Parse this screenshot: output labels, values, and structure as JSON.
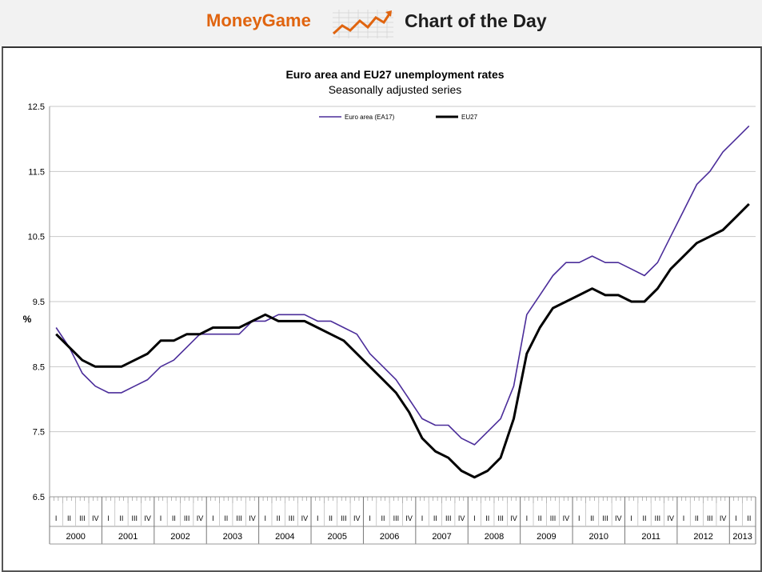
{
  "banner": {
    "brand": "MoneyGame",
    "title": "Chart of the Day"
  },
  "chart_data": {
    "type": "line",
    "title": "Euro area and EU27 unemployment rates",
    "subtitle": "Seasonally adjusted series",
    "ylabel": "%",
    "ylim": [
      6.5,
      12.5
    ],
    "yticks": [
      6.5,
      7.5,
      8.5,
      9.5,
      10.5,
      11.5,
      12.5
    ],
    "grid": true,
    "legend_position": "top-center",
    "x_start": "2000-01",
    "x_end": "2013-04",
    "years": [
      "2000",
      "2001",
      "2002",
      "2003",
      "2004",
      "2005",
      "2006",
      "2007",
      "2008",
      "2009",
      "2010",
      "2011",
      "2012",
      "2013"
    ],
    "quarter_labels": [
      "I",
      "II",
      "III",
      "IV"
    ],
    "x_quarters": [
      "2000-Q1",
      "2000-Q2",
      "2000-Q3",
      "2000-Q4",
      "2001-Q1",
      "2001-Q2",
      "2001-Q3",
      "2001-Q4",
      "2002-Q1",
      "2002-Q2",
      "2002-Q3",
      "2002-Q4",
      "2003-Q1",
      "2003-Q2",
      "2003-Q3",
      "2003-Q4",
      "2004-Q1",
      "2004-Q2",
      "2004-Q3",
      "2004-Q4",
      "2005-Q1",
      "2005-Q2",
      "2005-Q3",
      "2005-Q4",
      "2006-Q1",
      "2006-Q2",
      "2006-Q3",
      "2006-Q4",
      "2007-Q1",
      "2007-Q2",
      "2007-Q3",
      "2007-Q4",
      "2008-Q1",
      "2008-Q2",
      "2008-Q3",
      "2008-Q4",
      "2009-Q1",
      "2009-Q2",
      "2009-Q3",
      "2009-Q4",
      "2010-Q1",
      "2010-Q2",
      "2010-Q3",
      "2010-Q4",
      "2011-Q1",
      "2011-Q2",
      "2011-Q3",
      "2011-Q4",
      "2012-Q1",
      "2012-Q2",
      "2012-Q3",
      "2012-Q4",
      "2013-Q1",
      "2013-Q2"
    ],
    "series": [
      {
        "name": "Euro area (EA17)",
        "color": "#4b2d9a",
        "values": [
          9.1,
          8.8,
          8.4,
          8.2,
          8.1,
          8.1,
          8.2,
          8.3,
          8.5,
          8.6,
          8.8,
          9.0,
          9.0,
          9.0,
          9.0,
          9.2,
          9.2,
          9.3,
          9.3,
          9.3,
          9.2,
          9.2,
          9.1,
          9.0,
          8.7,
          8.5,
          8.3,
          8.0,
          7.7,
          7.6,
          7.6,
          7.4,
          7.3,
          7.5,
          7.7,
          8.2,
          9.3,
          9.6,
          9.9,
          10.1,
          10.1,
          10.2,
          10.1,
          10.1,
          10.0,
          9.9,
          10.1,
          10.5,
          10.9,
          11.3,
          11.5,
          11.8,
          12.0,
          12.2
        ]
      },
      {
        "name": "EU27",
        "color": "#000000",
        "values": [
          9.0,
          8.8,
          8.6,
          8.5,
          8.5,
          8.5,
          8.6,
          8.7,
          8.9,
          8.9,
          9.0,
          9.0,
          9.1,
          9.1,
          9.1,
          9.2,
          9.3,
          9.2,
          9.2,
          9.2,
          9.1,
          9.0,
          8.9,
          8.7,
          8.5,
          8.3,
          8.1,
          7.8,
          7.4,
          7.2,
          7.1,
          6.9,
          6.8,
          6.9,
          7.1,
          7.7,
          8.7,
          9.1,
          9.4,
          9.5,
          9.6,
          9.7,
          9.6,
          9.6,
          9.5,
          9.5,
          9.7,
          10.0,
          10.2,
          10.4,
          10.5,
          10.6,
          10.8,
          11.0
        ]
      }
    ]
  }
}
